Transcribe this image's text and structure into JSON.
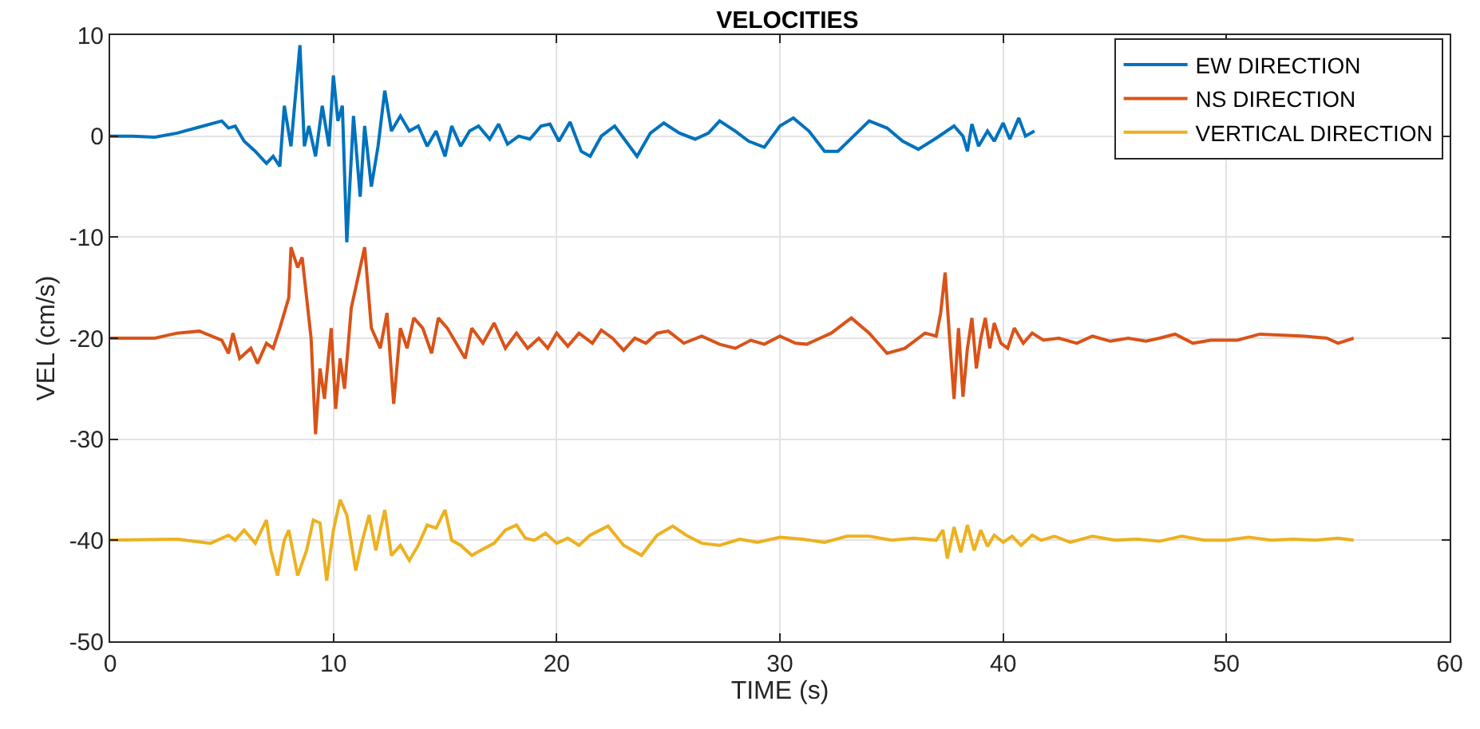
{
  "chart_data": {
    "type": "line",
    "title": "VELOCITIES",
    "xlabel": "TIME (s)",
    "ylabel": "VEL (cm/s)",
    "xlim": [
      0,
      60
    ],
    "xticks": [
      0,
      10,
      20,
      30,
      40,
      50,
      60
    ],
    "ylim": [
      -50,
      10
    ],
    "yticks": [
      -50,
      -40,
      -30,
      -20,
      -10,
      0,
      10
    ],
    "grid": true,
    "legend": "top right",
    "marker": "none",
    "line_style": "solid",
    "series": [
      {
        "name": "EW DIRECTION",
        "color": "#0072bd",
        "x": [
          0,
          1,
          2,
          3,
          4,
          5,
          5.3,
          5.6,
          6,
          6.5,
          7,
          7.3,
          7.6,
          7.8,
          8.1,
          8.3,
          8.5,
          8.7,
          8.9,
          9.2,
          9.5,
          9.8,
          10,
          10.2,
          10.4,
          10.6,
          10.9,
          11.2,
          11.4,
          11.7,
          12,
          12.3,
          12.6,
          13,
          13.4,
          13.8,
          14.2,
          14.6,
          15,
          15.3,
          15.7,
          16.1,
          16.5,
          17,
          17.4,
          17.8,
          18.3,
          18.8,
          19.3,
          19.7,
          20.1,
          20.6,
          21.1,
          21.5,
          22,
          22.6,
          23,
          23.6,
          24.2,
          24.8,
          25.5,
          26.2,
          26.8,
          27.3,
          28,
          28.6,
          29.3,
          30,
          30.6,
          31.3,
          32,
          32.6,
          33.3,
          34,
          34.8,
          35.5,
          36.2,
          37,
          37.8,
          38.2,
          38.4,
          38.6,
          38.9,
          39.3,
          39.6,
          40,
          40.3,
          40.7,
          41,
          41.4
        ],
        "values": [
          0,
          0,
          -0.1,
          0.3,
          0.9,
          1.5,
          0.8,
          1,
          -0.5,
          -1.5,
          -2.7,
          -2,
          -3,
          3,
          -1,
          4,
          9,
          -1,
          1,
          -2,
          3,
          -1,
          6,
          1.5,
          3,
          -10.5,
          2,
          -6,
          1,
          -5,
          -1,
          4.5,
          0.5,
          2,
          0.5,
          1,
          -1,
          0.5,
          -2,
          1,
          -1,
          0.5,
          1,
          -0.3,
          1.2,
          -0.8,
          0,
          -0.3,
          1,
          1.2,
          -0.5,
          1.4,
          -1.5,
          -2,
          0,
          1,
          -0.2,
          -2,
          0.3,
          1.3,
          0.3,
          -0.3,
          0.3,
          1.5,
          0.5,
          -0.5,
          -1.1,
          1,
          1.8,
          0.5,
          -1.5,
          -1.5,
          0,
          1.5,
          0.8,
          -0.5,
          -1.3,
          -0.2,
          1,
          0,
          -1.5,
          1.2,
          -1,
          0.5,
          -0.5,
          1.3,
          -0.3,
          1.8,
          0,
          0.5
        ]
      },
      {
        "name": "NS DIRECTION",
        "color": "#d95319",
        "x": [
          0,
          2,
          3,
          4,
          5,
          5.3,
          5.5,
          5.8,
          6.3,
          6.6,
          7,
          7.3,
          7.6,
          8,
          8.1,
          8.4,
          8.6,
          8.9,
          9,
          9.2,
          9.4,
          9.6,
          9.9,
          10.1,
          10.3,
          10.5,
          10.8,
          11.1,
          11.4,
          11.7,
          12.1,
          12.4,
          12.7,
          13,
          13.3,
          13.6,
          14,
          14.4,
          14.7,
          15.1,
          15.5,
          15.9,
          16.2,
          16.7,
          17.2,
          17.7,
          18.2,
          18.7,
          19.2,
          19.6,
          20,
          20.5,
          21,
          21.6,
          22,
          22.5,
          23,
          23.5,
          24,
          24.5,
          25,
          25.7,
          26.5,
          27.3,
          28,
          28.7,
          29.3,
          30,
          30.7,
          31.2,
          31.6,
          32.3,
          33.2,
          34,
          34.8,
          35.6,
          36.5,
          37,
          37.2,
          37.4,
          37.6,
          37.8,
          38,
          38.2,
          38.4,
          38.6,
          38.8,
          39,
          39.2,
          39.4,
          39.6,
          39.9,
          40.2,
          40.5,
          40.9,
          41.3,
          41.8,
          42.5,
          43.3,
          44,
          44.8,
          45.6,
          46.4,
          47,
          47.7,
          48.5,
          49.3,
          50.5,
          51.5,
          52.5,
          53.5,
          54.5,
          55,
          55.7
        ],
        "values": [
          -20,
          -20,
          -19.5,
          -19.3,
          -20.2,
          -21.5,
          -19.5,
          -22,
          -21,
          -22.5,
          -20.5,
          -21,
          -19,
          -16,
          -11,
          -13,
          -12,
          -18,
          -20,
          -29.5,
          -23,
          -26,
          -19,
          -27,
          -22,
          -25,
          -17,
          -14,
          -11,
          -19,
          -21,
          -17.5,
          -26.5,
          -19,
          -21,
          -18,
          -19,
          -21.5,
          -18,
          -19,
          -20.5,
          -22,
          -19,
          -20.5,
          -18.5,
          -21,
          -19.5,
          -21,
          -20,
          -21,
          -19.5,
          -20.8,
          -19.5,
          -20.5,
          -19.2,
          -20,
          -21.2,
          -20,
          -20.5,
          -19.5,
          -19.3,
          -20.5,
          -19.8,
          -20.6,
          -21,
          -20.2,
          -20.6,
          -19.8,
          -20.5,
          -20.6,
          -20.2,
          -19.5,
          -18,
          -19.5,
          -21.5,
          -21,
          -19.5,
          -19.8,
          -17.5,
          -13.5,
          -20,
          -26,
          -19,
          -25.8,
          -21,
          -18,
          -23,
          -20,
          -18,
          -21,
          -18.5,
          -20.5,
          -21,
          -19,
          -20.5,
          -19.5,
          -20.2,
          -20,
          -20.5,
          -19.8,
          -20.3,
          -20,
          -20.3,
          -20,
          -19.6,
          -20.5,
          -20.2,
          -20.2,
          -19.6,
          -19.7,
          -19.8,
          -20,
          -20.5,
          -20
        ]
      },
      {
        "name": "VERTICAL DIRECTION",
        "color": "#edb120",
        "x": [
          0,
          3,
          4.5,
          5.3,
          5.6,
          6,
          6.5,
          7,
          7.2,
          7.5,
          7.8,
          8,
          8.4,
          8.8,
          9.1,
          9.4,
          9.7,
          10,
          10.3,
          10.6,
          11,
          11.3,
          11.6,
          11.9,
          12.3,
          12.6,
          13,
          13.4,
          13.8,
          14.2,
          14.6,
          15,
          15.3,
          15.7,
          16.2,
          16.6,
          17.2,
          17.7,
          18.2,
          18.6,
          19,
          19.5,
          20,
          20.5,
          21,
          21.5,
          22.3,
          23,
          23.8,
          24.5,
          25.2,
          25.8,
          26.5,
          27.3,
          28.2,
          29,
          30,
          31,
          32,
          33,
          34,
          35,
          36,
          37,
          37.3,
          37.5,
          37.8,
          38.1,
          38.4,
          38.7,
          39,
          39.3,
          39.6,
          40,
          40.4,
          40.8,
          41.3,
          41.7,
          42.3,
          43,
          44,
          45,
          46,
          47,
          48,
          49,
          50,
          51,
          52,
          53,
          54,
          55,
          55.7
        ],
        "values": [
          -40,
          -39.9,
          -40.3,
          -39.5,
          -40,
          -39,
          -40.3,
          -38,
          -41,
          -43.5,
          -40,
          -39,
          -43.5,
          -41,
          -38,
          -38.3,
          -44,
          -39,
          -36,
          -37.5,
          -43,
          -40,
          -37.5,
          -41,
          -37,
          -41.5,
          -40.5,
          -42,
          -40.5,
          -38.5,
          -38.8,
          -37,
          -40,
          -40.5,
          -41.5,
          -41,
          -40.3,
          -39,
          -38.5,
          -39.8,
          -40,
          -39.3,
          -40.3,
          -39.8,
          -40.5,
          -39.5,
          -38.6,
          -40.5,
          -41.5,
          -39.5,
          -38.6,
          -39.5,
          -40.3,
          -40.5,
          -39.9,
          -40.2,
          -39.7,
          -39.9,
          -40.2,
          -39.6,
          -39.6,
          -40,
          -39.8,
          -40,
          -39,
          -41.8,
          -38.7,
          -41.2,
          -38.5,
          -41,
          -39,
          -40.6,
          -39.5,
          -40.2,
          -39.6,
          -40.5,
          -39.5,
          -40,
          -39.6,
          -40.2,
          -39.6,
          -40,
          -39.9,
          -40.1,
          -39.6,
          -40,
          -40,
          -39.7,
          -40,
          -39.9,
          -40,
          -39.8,
          -40
        ]
      }
    ]
  }
}
